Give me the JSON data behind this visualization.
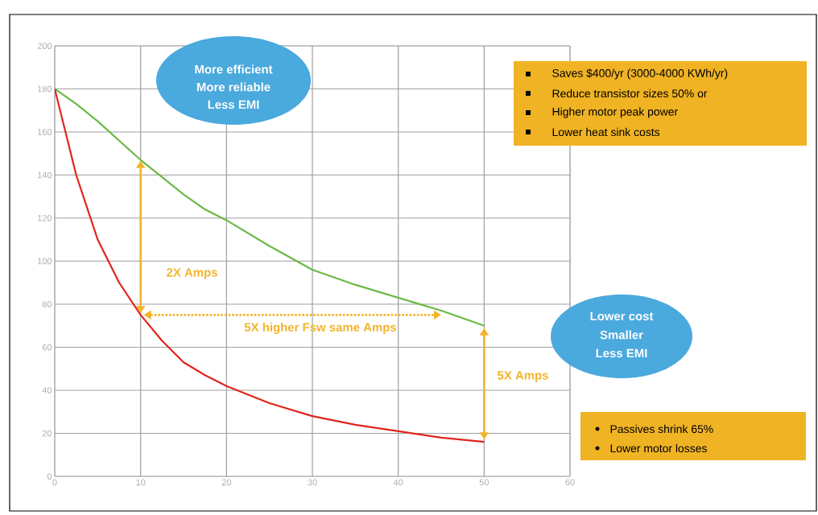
{
  "chart_data": {
    "type": "line",
    "x": [
      0,
      2.5,
      5,
      7.5,
      10,
      12.5,
      15,
      17.5,
      20,
      25,
      30,
      35,
      40,
      45,
      50
    ],
    "series": [
      {
        "color": "#6ab947",
        "values": [
          180,
          173,
          165,
          156,
          147,
          139,
          131,
          124,
          119,
          107,
          96,
          89,
          83,
          77,
          70
        ]
      },
      {
        "color": "#e0261c",
        "values": [
          180,
          140,
          110,
          90,
          75,
          63,
          53,
          47,
          42,
          34,
          28,
          24,
          21,
          18,
          16
        ]
      }
    ],
    "xlim": [
      0,
      60
    ],
    "ylim": [
      0,
      200
    ],
    "xticks": [
      0,
      10,
      20,
      30,
      40,
      50,
      60
    ],
    "yticks": [
      0,
      20,
      40,
      60,
      80,
      100,
      120,
      140,
      160,
      180,
      200
    ],
    "grid": true,
    "marker": "none",
    "line_style": "solid",
    "annotations": [
      "More efficient",
      "More reliable",
      "Less EMI",
      "Saves $400/yr (3000-4000 KWh/yr)",
      "Reduce transistor sizes 50% or",
      "Higher motor peak power",
      "Lower heat sink costs",
      "2X Amps",
      "5X higher Fsw same Amps",
      "Lower cost",
      "Smaller",
      "Less EMI",
      "5X Amps",
      "Passives shrink 65%",
      "Lower motor losses"
    ]
  }
}
